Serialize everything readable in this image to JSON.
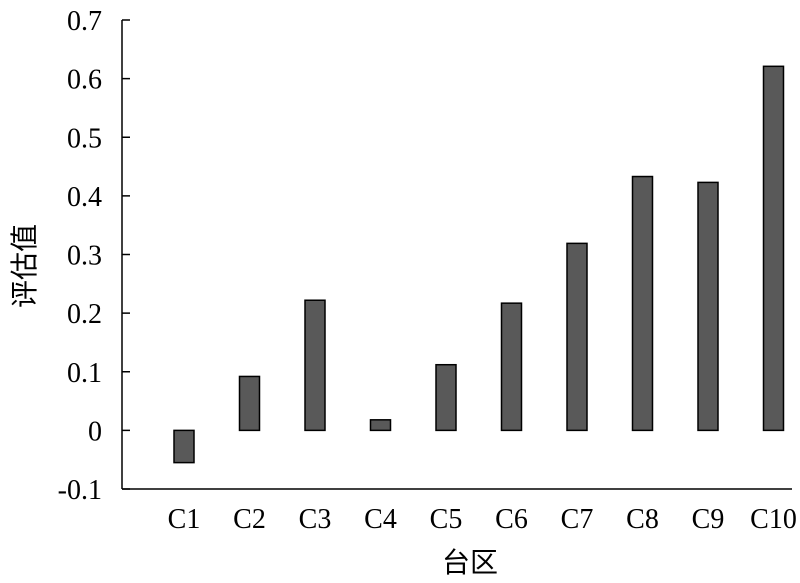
{
  "chart_data": {
    "type": "bar",
    "categories": [
      "C1",
      "C2",
      "C3",
      "C4",
      "C5",
      "C6",
      "C7",
      "C8",
      "C9",
      "C10"
    ],
    "values": [
      -0.055,
      0.092,
      0.222,
      0.018,
      0.112,
      0.217,
      0.319,
      0.433,
      0.423,
      0.621
    ],
    "xlabel": "台区",
    "ylabel": "评估值",
    "ylim": [
      -0.1,
      0.7
    ],
    "yticks": [
      "-0.1",
      "0",
      "0.1",
      "0.2",
      "0.3",
      "0.4",
      "0.5",
      "0.6",
      "0.7"
    ],
    "ytick_values": [
      -0.1,
      0,
      0.1,
      0.2,
      0.3,
      0.4,
      0.5,
      0.6,
      0.7
    ],
    "grid": false,
    "bar_color": "#595959"
  }
}
